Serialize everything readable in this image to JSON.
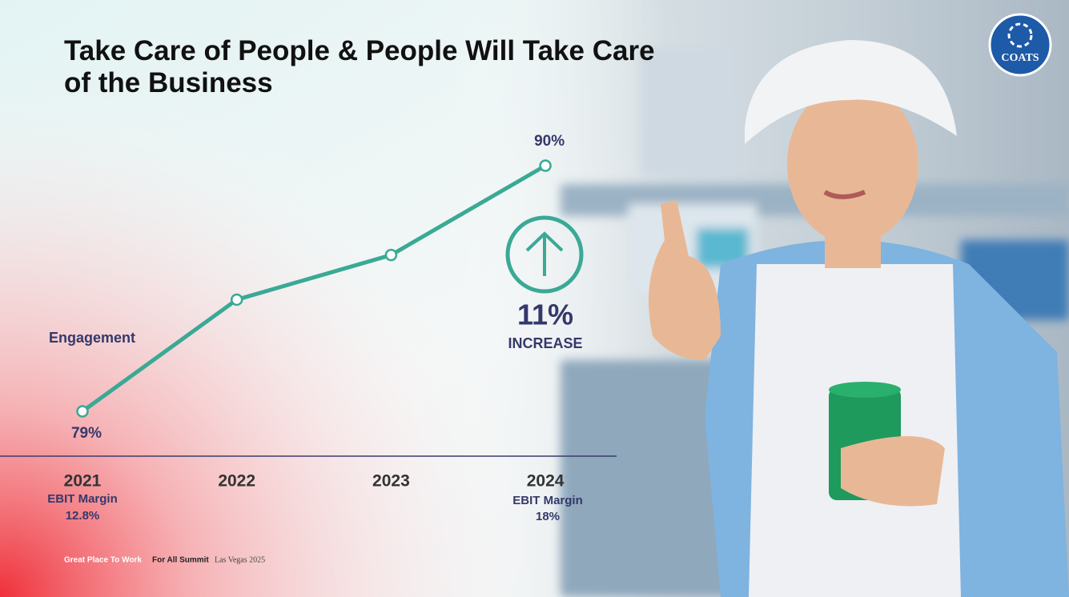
{
  "header": {
    "title": "Take Care of People & People Will Take Care of the Business",
    "logo": "COATS"
  },
  "chart_data": {
    "type": "line",
    "series_label": "Engagement",
    "categories": [
      "2021",
      "2022",
      "2023",
      "2024"
    ],
    "values": [
      79,
      84,
      86,
      90
    ],
    "value_labels": [
      "79%",
      null,
      null,
      "90%"
    ],
    "color": "#3aa995"
  },
  "annotation": {
    "value": "11%",
    "label": "INCREASE"
  },
  "ebit_margins": [
    {
      "label": "EBIT Margin",
      "value": "12.8%"
    },
    {
      "label": "EBIT Margin",
      "value": "18%"
    }
  ],
  "footer": [
    "Great Place To Work",
    "For All Summit",
    "Las Vegas 2025"
  ]
}
